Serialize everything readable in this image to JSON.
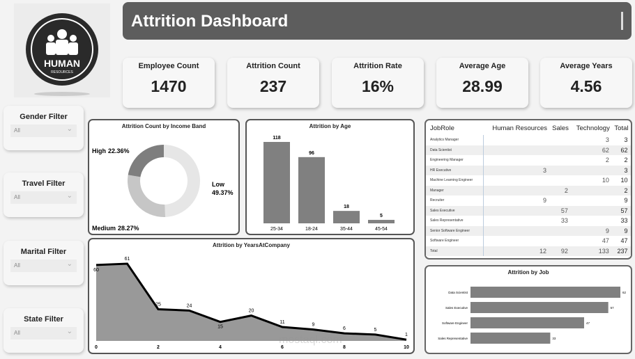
{
  "logo": {
    "text": "HUMAN",
    "subtext": "RESOURCES"
  },
  "header": {
    "title": "Attrition Dashboard"
  },
  "kpis": [
    {
      "label": "Employee Count",
      "value": "1470"
    },
    {
      "label": "Attrition Count",
      "value": "237"
    },
    {
      "label": "Attrition Rate",
      "value": "16%"
    },
    {
      "label": "Average Age",
      "value": "28.99"
    },
    {
      "label": "Average Years",
      "value": "4.56"
    }
  ],
  "filters": [
    {
      "label": "Gender Filter",
      "value": "All"
    },
    {
      "label": "Travel Filter",
      "value": "All"
    },
    {
      "label": "Marital Filter",
      "value": "All"
    },
    {
      "label": "State Filter",
      "value": "All"
    }
  ],
  "chart_data": [
    {
      "type": "pie",
      "title": "Attrition Count by Income Band",
      "donut": true,
      "slices": [
        {
          "label": "Low",
          "value": 49.37,
          "display": "49.37%",
          "color": "#e6e6e6"
        },
        {
          "label": "Medium",
          "value": 28.27,
          "display": "28.27%",
          "color": "#c6c6c6"
        },
        {
          "label": "High",
          "value": 22.36,
          "display": "22.36%",
          "color": "#7e7e7e"
        }
      ]
    },
    {
      "type": "bar",
      "title": "Attrition by Age",
      "categories": [
        "25-34",
        "18-24",
        "35-44",
        "45-54"
      ],
      "values": [
        118,
        96,
        18,
        5
      ],
      "color": "#808080"
    },
    {
      "type": "area",
      "title": "Attrition by YearsAtCompany",
      "x": [
        0,
        1,
        2,
        3,
        4,
        5,
        6,
        7,
        8,
        9,
        10
      ],
      "values": [
        60,
        61,
        25,
        24,
        15,
        20,
        11,
        9,
        6,
        5,
        1
      ],
      "xticks": [
        0,
        2,
        4,
        6,
        8,
        10
      ],
      "color": "#999999"
    },
    {
      "type": "bar",
      "orientation": "horizontal",
      "title": "Attrition by Job",
      "categories": [
        "Data Scientist",
        "Sales Executive",
        "Software Engineer",
        "Sales Representative"
      ],
      "values": [
        62,
        57,
        47,
        33
      ],
      "color": "#808080"
    }
  ],
  "matrix": {
    "columns": [
      "JobRole",
      "Human Resources",
      "Sales",
      "Technology",
      "Total"
    ],
    "rows": [
      [
        "Analytics Manager",
        "",
        "",
        "3",
        "3"
      ],
      [
        "Data Scientist",
        "",
        "",
        "62",
        "62"
      ],
      [
        "Engineering Manager",
        "",
        "",
        "2",
        "2"
      ],
      [
        "HR Executive",
        "3",
        "",
        "",
        "3"
      ],
      [
        "Machine Learning Engineer",
        "",
        "",
        "10",
        "10"
      ],
      [
        "Manager",
        "",
        "2",
        "",
        "2"
      ],
      [
        "Recruiter",
        "9",
        "",
        "",
        "9"
      ],
      [
        "Sales Executive",
        "",
        "57",
        "",
        "57"
      ],
      [
        "Sales Representative",
        "",
        "33",
        "",
        "33"
      ],
      [
        "Senior Software Engineer",
        "",
        "",
        "9",
        "9"
      ],
      [
        "Software Engineer",
        "",
        "",
        "47",
        "47"
      ],
      [
        "Total",
        "12",
        "92",
        "133",
        "237"
      ]
    ]
  },
  "watermark": "mostaql.com"
}
